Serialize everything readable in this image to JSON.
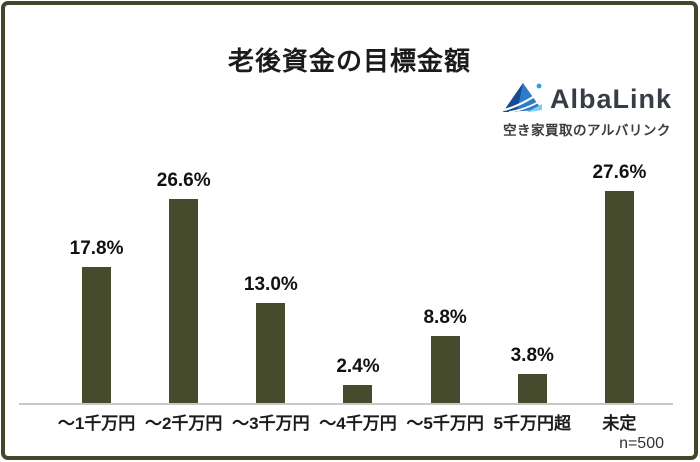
{
  "title": "老後資金の目標金額",
  "logo": {
    "name": "AlbaLink",
    "tagline": "空き家買取のアルバリンク",
    "mark_colors": {
      "dark_blue": "#174b92",
      "mid_blue": "#2e7cc3",
      "light_blue": "#7fcdf2",
      "dot_blue": "#2e9fd8"
    }
  },
  "chart_data": {
    "type": "bar",
    "title": "老後資金の目標金額",
    "categories": [
      "～1千万円",
      "～2千万円",
      "～3千万円",
      "～4千万円",
      "～5千万円",
      "5千万円超",
      "未定"
    ],
    "values": [
      17.8,
      26.6,
      13.0,
      2.4,
      8.8,
      3.8,
      27.6
    ],
    "value_labels": [
      "17.8%",
      "26.6%",
      "13.0%",
      "2.4%",
      "8.8%",
      "3.8%",
      "27.6%"
    ],
    "xlabel": "",
    "ylabel": "",
    "ylim": [
      0,
      30
    ],
    "grid": false,
    "legend": false,
    "bar_color": "#474b2e",
    "axis_color": "#c8c8c8",
    "sample_size_label": "n=500"
  }
}
